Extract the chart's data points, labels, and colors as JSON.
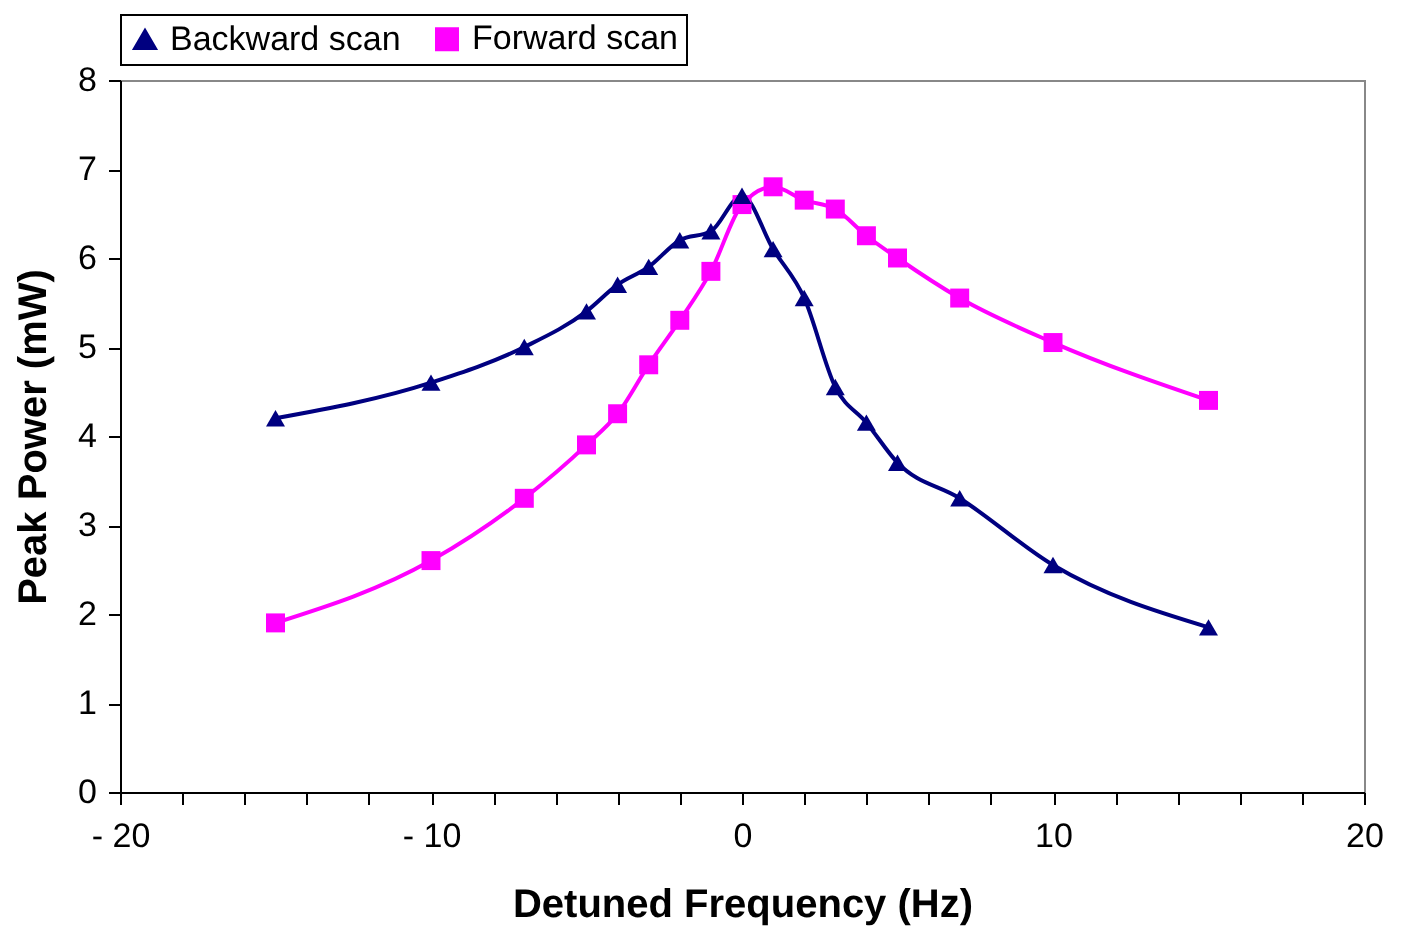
{
  "chart_data": {
    "type": "line",
    "xlabel": "Detuned Frequency (Hz)",
    "ylabel": "Peak Power (mW)",
    "x": [
      -15,
      -10,
      -7,
      -5,
      -4,
      -3,
      -2,
      -1,
      0,
      1,
      2,
      3,
      4,
      5,
      7,
      10,
      15
    ],
    "series": [
      {
        "name": "Backward scan",
        "color": "#000080",
        "marker": "triangle",
        "values": [
          4.2,
          4.6,
          5.0,
          5.4,
          5.7,
          5.9,
          6.2,
          6.3,
          6.7,
          6.1,
          5.55,
          4.55,
          4.15,
          3.7,
          3.3,
          2.55,
          1.85
        ]
      },
      {
        "name": "Forward scan",
        "color": "#ff00ff",
        "marker": "square",
        "values": [
          1.9,
          2.6,
          3.3,
          3.9,
          4.25,
          4.8,
          5.3,
          5.85,
          6.6,
          6.8,
          6.65,
          6.55,
          6.25,
          6.0,
          5.55,
          5.05,
          4.4
        ]
      }
    ],
    "xlim": [
      -20,
      20
    ],
    "xticks": [
      {
        "value": -20,
        "label": "- 20"
      },
      {
        "value": -18,
        "label": null
      },
      {
        "value": -16,
        "label": null
      },
      {
        "value": -14,
        "label": null
      },
      {
        "value": -12,
        "label": null
      },
      {
        "value": -10,
        "label": "- 10"
      },
      {
        "value": -8,
        "label": null
      },
      {
        "value": -6,
        "label": null
      },
      {
        "value": -4,
        "label": null
      },
      {
        "value": -2,
        "label": null
      },
      0,
      {
        "value": 2,
        "label": null
      },
      {
        "value": 4,
        "label": null
      },
      {
        "value": 6,
        "label": null
      },
      {
        "value": 8,
        "label": null
      },
      10,
      {
        "value": 12,
        "label": null
      },
      {
        "value": 14,
        "label": null
      },
      {
        "value": 16,
        "label": null
      },
      {
        "value": 18,
        "label": null
      },
      20
    ],
    "ylim": [
      0,
      8
    ],
    "yticks": [
      0,
      1,
      2,
      3,
      4,
      5,
      6,
      7,
      8
    ],
    "grid": false,
    "legend": "top",
    "line_style": "solid"
  }
}
